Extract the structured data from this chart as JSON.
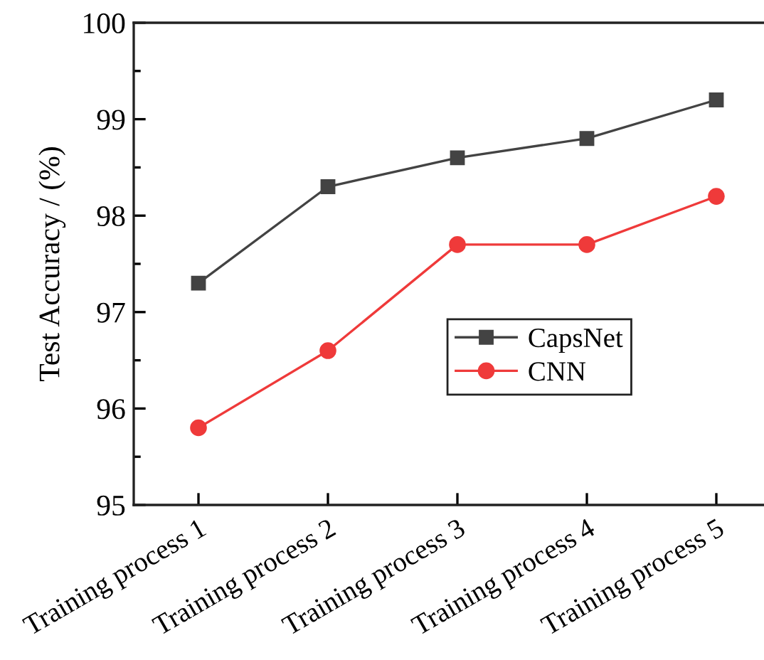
{
  "chart_data": {
    "type": "line",
    "ylabel": "Test Accuracy / (%)",
    "categories": [
      "Training process 1",
      "Training process 2",
      "Training process 3",
      "Training process 4",
      "Training process 5"
    ],
    "series": [
      {
        "name": "CapsNet",
        "color": "#434343",
        "marker": "square",
        "values": [
          97.3,
          98.3,
          98.6,
          98.8,
          99.2
        ]
      },
      {
        "name": "CNN",
        "color": "#ef3a3a",
        "marker": "circle",
        "values": [
          95.8,
          96.6,
          97.7,
          97.7,
          98.2
        ]
      }
    ],
    "ylim": [
      95,
      100
    ],
    "yticks": [
      95,
      96,
      97,
      98,
      99,
      100
    ],
    "grid": false,
    "legend": "lower right",
    "line_style": "solid"
  }
}
